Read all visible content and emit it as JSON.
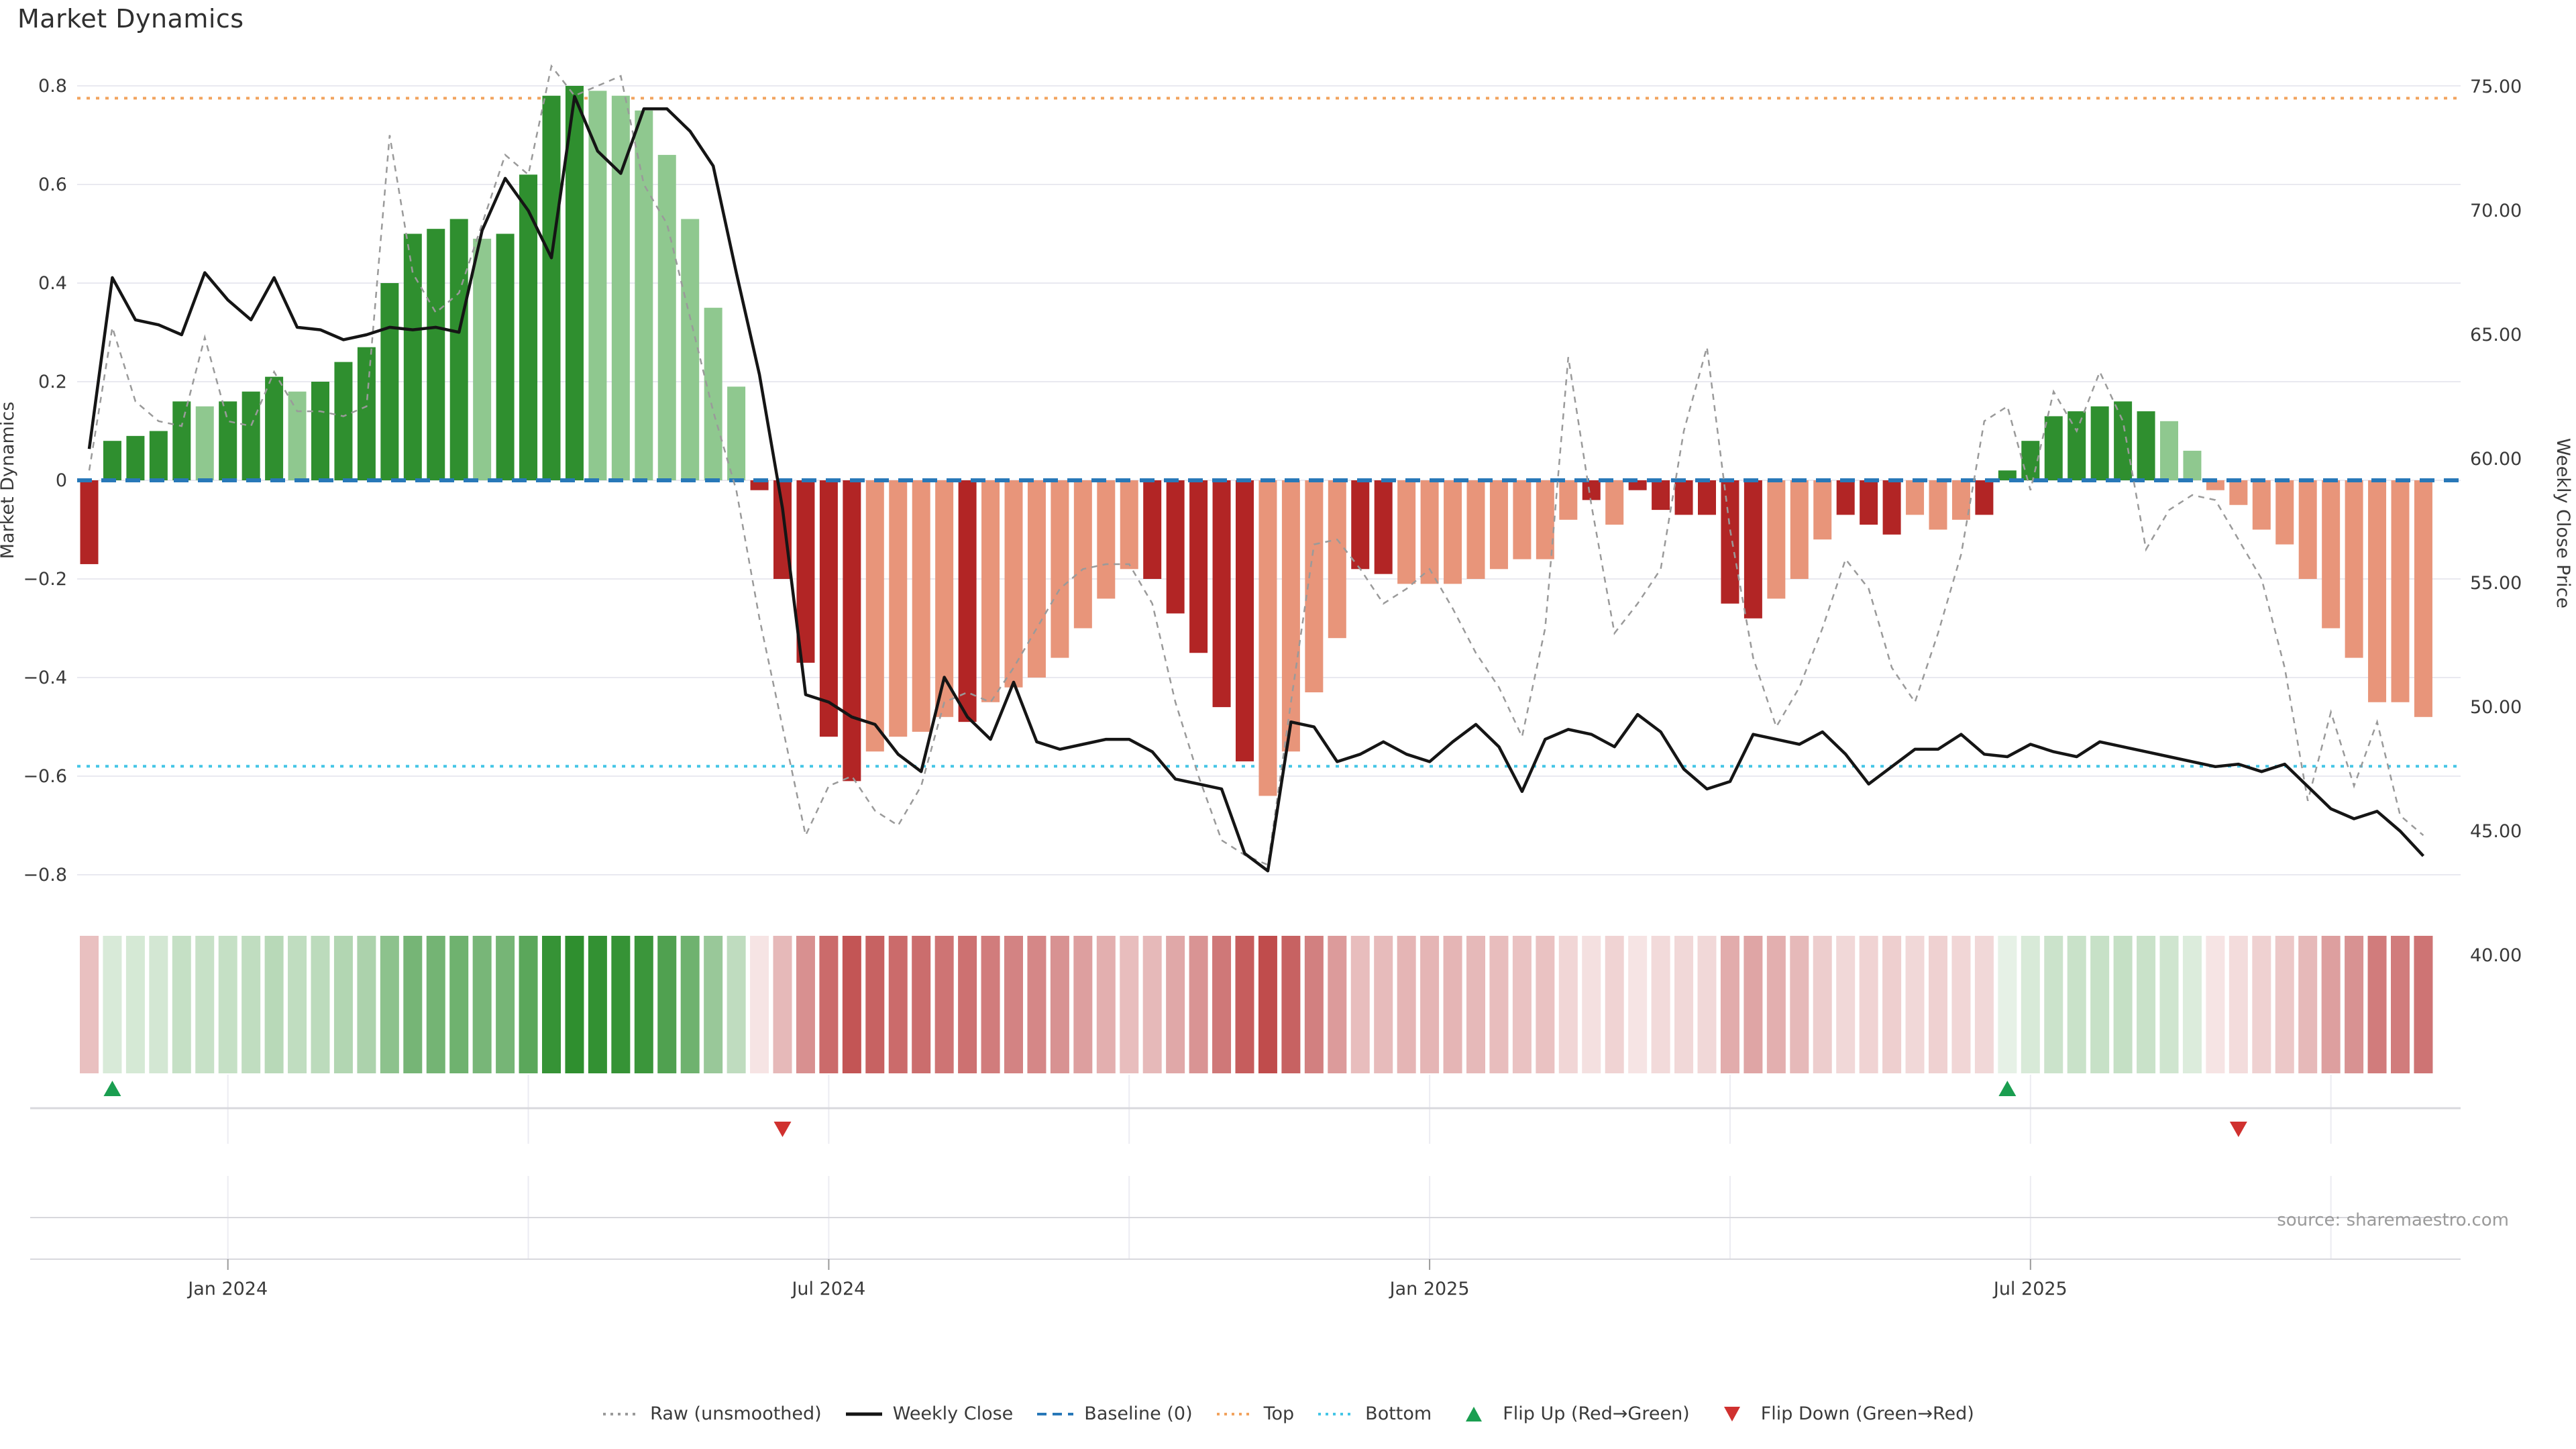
{
  "title": "Market Dynamics",
  "source": "source: sharemaestro.com",
  "colors": {
    "strong_green": "#2f8f2f",
    "soft_green": "#8fc88f",
    "strong_red": "#b22525",
    "soft_red": "#e8957a",
    "baseline_blue": "#2878b8",
    "top_orange": "#f2a35e",
    "bottom_cyan": "#45c6e6",
    "raw_gray": "#9a9a9a",
    "close_black": "#151515",
    "marker_green": "#1a9e50",
    "marker_red": "#d0312f",
    "grid": "#e9e9f0",
    "panel_line": "#d8d8dd",
    "tick_text": "#3a3a3a",
    "source_text": "#9a9a9a"
  },
  "axes": {
    "left": {
      "label": "Market Dynamics",
      "ticks": [
        0.8,
        0.6,
        0.4,
        0.2,
        0,
        -0.2,
        -0.4,
        -0.6,
        -0.8
      ]
    },
    "right": {
      "label": "Weekly Close Price",
      "ticks": [
        75,
        70,
        65,
        60,
        55,
        50,
        45,
        40
      ]
    },
    "x": {
      "ticks": [
        {
          "label": "Jan 2024",
          "week": 6
        },
        {
          "label": "Jul 2024",
          "week": 32
        },
        {
          "label": "Jan 2025",
          "week": 58
        },
        {
          "label": "Jul 2025",
          "week": 84
        }
      ]
    }
  },
  "legend_items": [
    {
      "id": "raw",
      "glyph": "dotted-line",
      "color_key": "raw_gray",
      "label": "Raw (unsmoothed)"
    },
    {
      "id": "weekly-close",
      "glyph": "solid-line",
      "color_key": "close_black",
      "label": "Weekly Close"
    },
    {
      "id": "baseline",
      "glyph": "dashed-line",
      "color_key": "baseline_blue",
      "label": "Baseline (0)"
    },
    {
      "id": "top",
      "glyph": "dotted-line",
      "color_key": "top_orange",
      "label": "Top"
    },
    {
      "id": "bottom",
      "glyph": "dotted-line",
      "color_key": "bottom_cyan",
      "label": "Bottom"
    },
    {
      "id": "flip-up",
      "glyph": "triangle-up",
      "color_key": "marker_green",
      "label": "Flip Up (Red→Green)"
    },
    {
      "id": "flip-down",
      "glyph": "triangle-down",
      "color_key": "marker_red",
      "label": "Flip Down (Green→Red)"
    }
  ],
  "chart_data": {
    "type": "bar",
    "weeks": 102,
    "ylim_dynamics": [
      -0.8,
      0.8
    ],
    "ylim_price": [
      40,
      75
    ],
    "reference_lines": {
      "baseline": 0,
      "top": 0.775,
      "bottom": -0.58
    },
    "quarter_grid_weeks": [
      6,
      19,
      32,
      45,
      58,
      71,
      84,
      97
    ],
    "flip_up_weeks": [
      1,
      83
    ],
    "flip_down_weeks": [
      30,
      93
    ],
    "series": [
      {
        "name": "Market Dynamics (bars)",
        "values": [
          -0.17,
          0.08,
          0.09,
          0.1,
          0.16,
          0.15,
          0.16,
          0.18,
          0.21,
          0.18,
          0.2,
          0.24,
          0.27,
          0.4,
          0.5,
          0.51,
          0.53,
          0.49,
          0.5,
          0.62,
          0.78,
          0.8,
          0.79,
          0.78,
          0.75,
          0.66,
          0.53,
          0.35,
          0.19,
          -0.02,
          -0.2,
          -0.37,
          -0.52,
          -0.61,
          -0.55,
          -0.52,
          -0.51,
          -0.48,
          -0.49,
          -0.45,
          -0.42,
          -0.4,
          -0.36,
          -0.3,
          -0.24,
          -0.18,
          -0.2,
          -0.27,
          -0.35,
          -0.46,
          -0.57,
          -0.64,
          -0.55,
          -0.43,
          -0.32,
          -0.18,
          -0.19,
          -0.21,
          -0.21,
          -0.21,
          -0.2,
          -0.18,
          -0.16,
          -0.16,
          -0.08,
          -0.04,
          -0.09,
          -0.02,
          -0.06,
          -0.07,
          -0.07,
          -0.25,
          -0.28,
          -0.24,
          -0.2,
          -0.12,
          -0.07,
          -0.09,
          -0.11,
          -0.07,
          -0.1,
          -0.08,
          -0.07,
          0.02,
          0.08,
          0.13,
          0.14,
          0.15,
          0.16,
          0.14,
          0.12,
          0.06,
          -0.02,
          -0.05,
          -0.1,
          -0.13,
          -0.2,
          -0.3,
          -0.36,
          -0.45,
          -0.45,
          -0.48
        ],
        "shade_pattern": "sssssl sssl sssssssl sssslllllll sssssllll sllllllls sssslllls sllllllll slsssssslll ssslllsssss ssslllllllll",
        "note_shade": "s = saturated bar, l = light bar; whitespace is padding-free when parsed"
      },
      {
        "name": "Weekly Close",
        "axis": "price",
        "values": [
          60.4,
          67.3,
          65.6,
          65.4,
          65.0,
          67.5,
          66.4,
          65.6,
          67.3,
          65.3,
          65.2,
          64.8,
          65.0,
          65.3,
          65.2,
          65.3,
          65.1,
          69.2,
          71.3,
          70.0,
          68.1,
          74.6,
          72.4,
          71.5,
          74.1,
          74.1,
          73.2,
          71.8,
          67.5,
          63.4,
          58.0,
          50.5,
          50.2,
          49.6,
          49.3,
          48.1,
          47.4,
          51.2,
          49.6,
          48.7,
          51.0,
          48.6,
          48.3,
          48.5,
          48.7,
          48.7,
          48.2,
          47.1,
          46.9,
          46.7,
          44.1,
          43.4,
          49.4,
          49.2,
          47.8,
          48.1,
          48.6,
          48.1,
          47.8,
          48.6,
          49.3,
          48.4,
          46.6,
          48.7,
          49.1,
          48.9,
          48.4,
          49.7,
          49.0,
          47.5,
          46.7,
          47.0,
          48.9,
          48.7,
          48.5,
          49.0,
          48.1,
          46.9,
          47.6,
          48.3,
          48.3,
          48.9,
          48.1,
          48.0,
          48.5,
          48.2,
          48.0,
          48.6,
          48.4,
          48.2,
          48.0,
          47.8,
          47.6,
          47.7,
          47.4,
          47.7,
          46.8,
          45.9,
          45.5,
          45.8,
          45.0,
          44.0
        ]
      },
      {
        "name": "Raw (unsmoothed)",
        "axis": "dynamics",
        "values": [
          0.02,
          0.31,
          0.16,
          0.12,
          0.11,
          0.29,
          0.12,
          0.11,
          0.22,
          0.14,
          0.14,
          0.13,
          0.15,
          0.7,
          0.42,
          0.34,
          0.38,
          0.52,
          0.66,
          0.62,
          0.84,
          0.78,
          0.8,
          0.82,
          0.6,
          0.52,
          0.33,
          0.14,
          -0.02,
          -0.28,
          -0.5,
          -0.72,
          -0.62,
          -0.6,
          -0.67,
          -0.7,
          -0.62,
          -0.45,
          -0.43,
          -0.45,
          -0.38,
          -0.3,
          -0.22,
          -0.18,
          -0.17,
          -0.17,
          -0.25,
          -0.45,
          -0.6,
          -0.73,
          -0.76,
          -0.78,
          -0.45,
          -0.13,
          -0.12,
          -0.18,
          -0.25,
          -0.22,
          -0.18,
          -0.26,
          -0.35,
          -0.42,
          -0.52,
          -0.3,
          0.25,
          -0.05,
          -0.31,
          -0.25,
          -0.18,
          0.1,
          0.27,
          -0.1,
          -0.36,
          -0.5,
          -0.42,
          -0.3,
          -0.16,
          -0.22,
          -0.38,
          -0.45,
          -0.31,
          -0.15,
          0.12,
          0.15,
          -0.02,
          0.18,
          0.1,
          0.22,
          0.12,
          -0.14,
          -0.06,
          -0.03,
          -0.04,
          -0.12,
          -0.2,
          -0.38,
          -0.65,
          -0.47,
          -0.62,
          -0.49,
          -0.68,
          -0.72
        ]
      }
    ],
    "heatmap": {
      "description": "one cell per week, green for positive / red for negative, opacity scales with magnitude"
    }
  }
}
